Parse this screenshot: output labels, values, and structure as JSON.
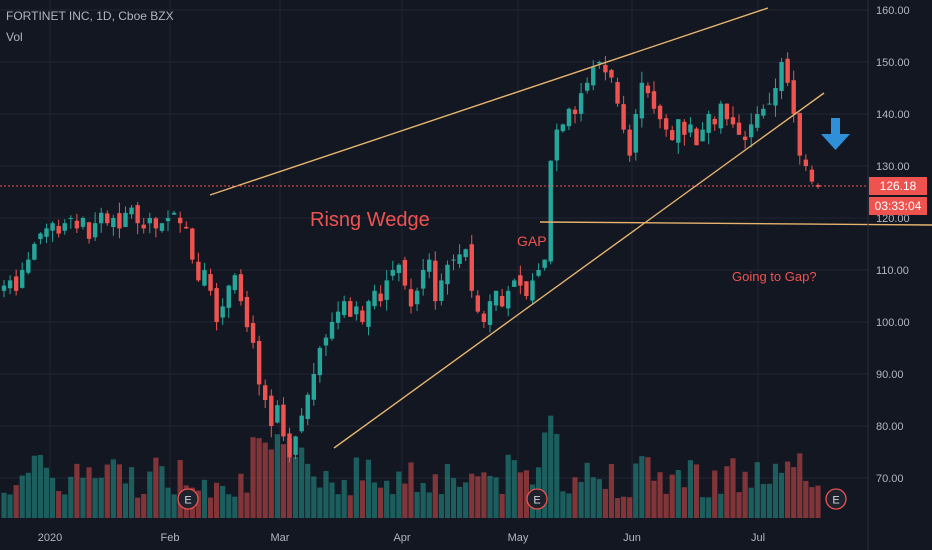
{
  "header": {
    "symbol_line": "FORTINET INC, 1D, Cboe BZX",
    "indicator": "Vol"
  },
  "colors": {
    "bg": "#131722",
    "up": "#26a69a",
    "down": "#ef5350",
    "grid": "#1f2433",
    "text": "#b2b5be",
    "annot": "#ef5350",
    "trend": "#e6b46e",
    "arrow": "#2f8fd8",
    "badge": "#ef5350"
  },
  "chart_data": {
    "type": "candlestick",
    "y_ticks": [
      "160.00",
      "150.00",
      "140.00",
      "130.00",
      "120.00",
      "110.00",
      "100.00",
      "90.00",
      "80.00",
      "70.00"
    ],
    "y_tick_values": [
      160,
      150,
      140,
      130,
      120,
      110,
      100,
      90,
      80,
      70
    ],
    "x_ticks": [
      "2020",
      "Feb",
      "Mar",
      "Apr",
      "May",
      "Jun",
      "Jul"
    ],
    "ylim": [
      62,
      163
    ],
    "price_value": 126.18,
    "price_label": "126.18",
    "countdown": "03:33:04",
    "annotations": [
      "Risng Wedge",
      "GAP",
      "Going to Gap?"
    ],
    "earnings_marker": "E",
    "candles": []
  }
}
